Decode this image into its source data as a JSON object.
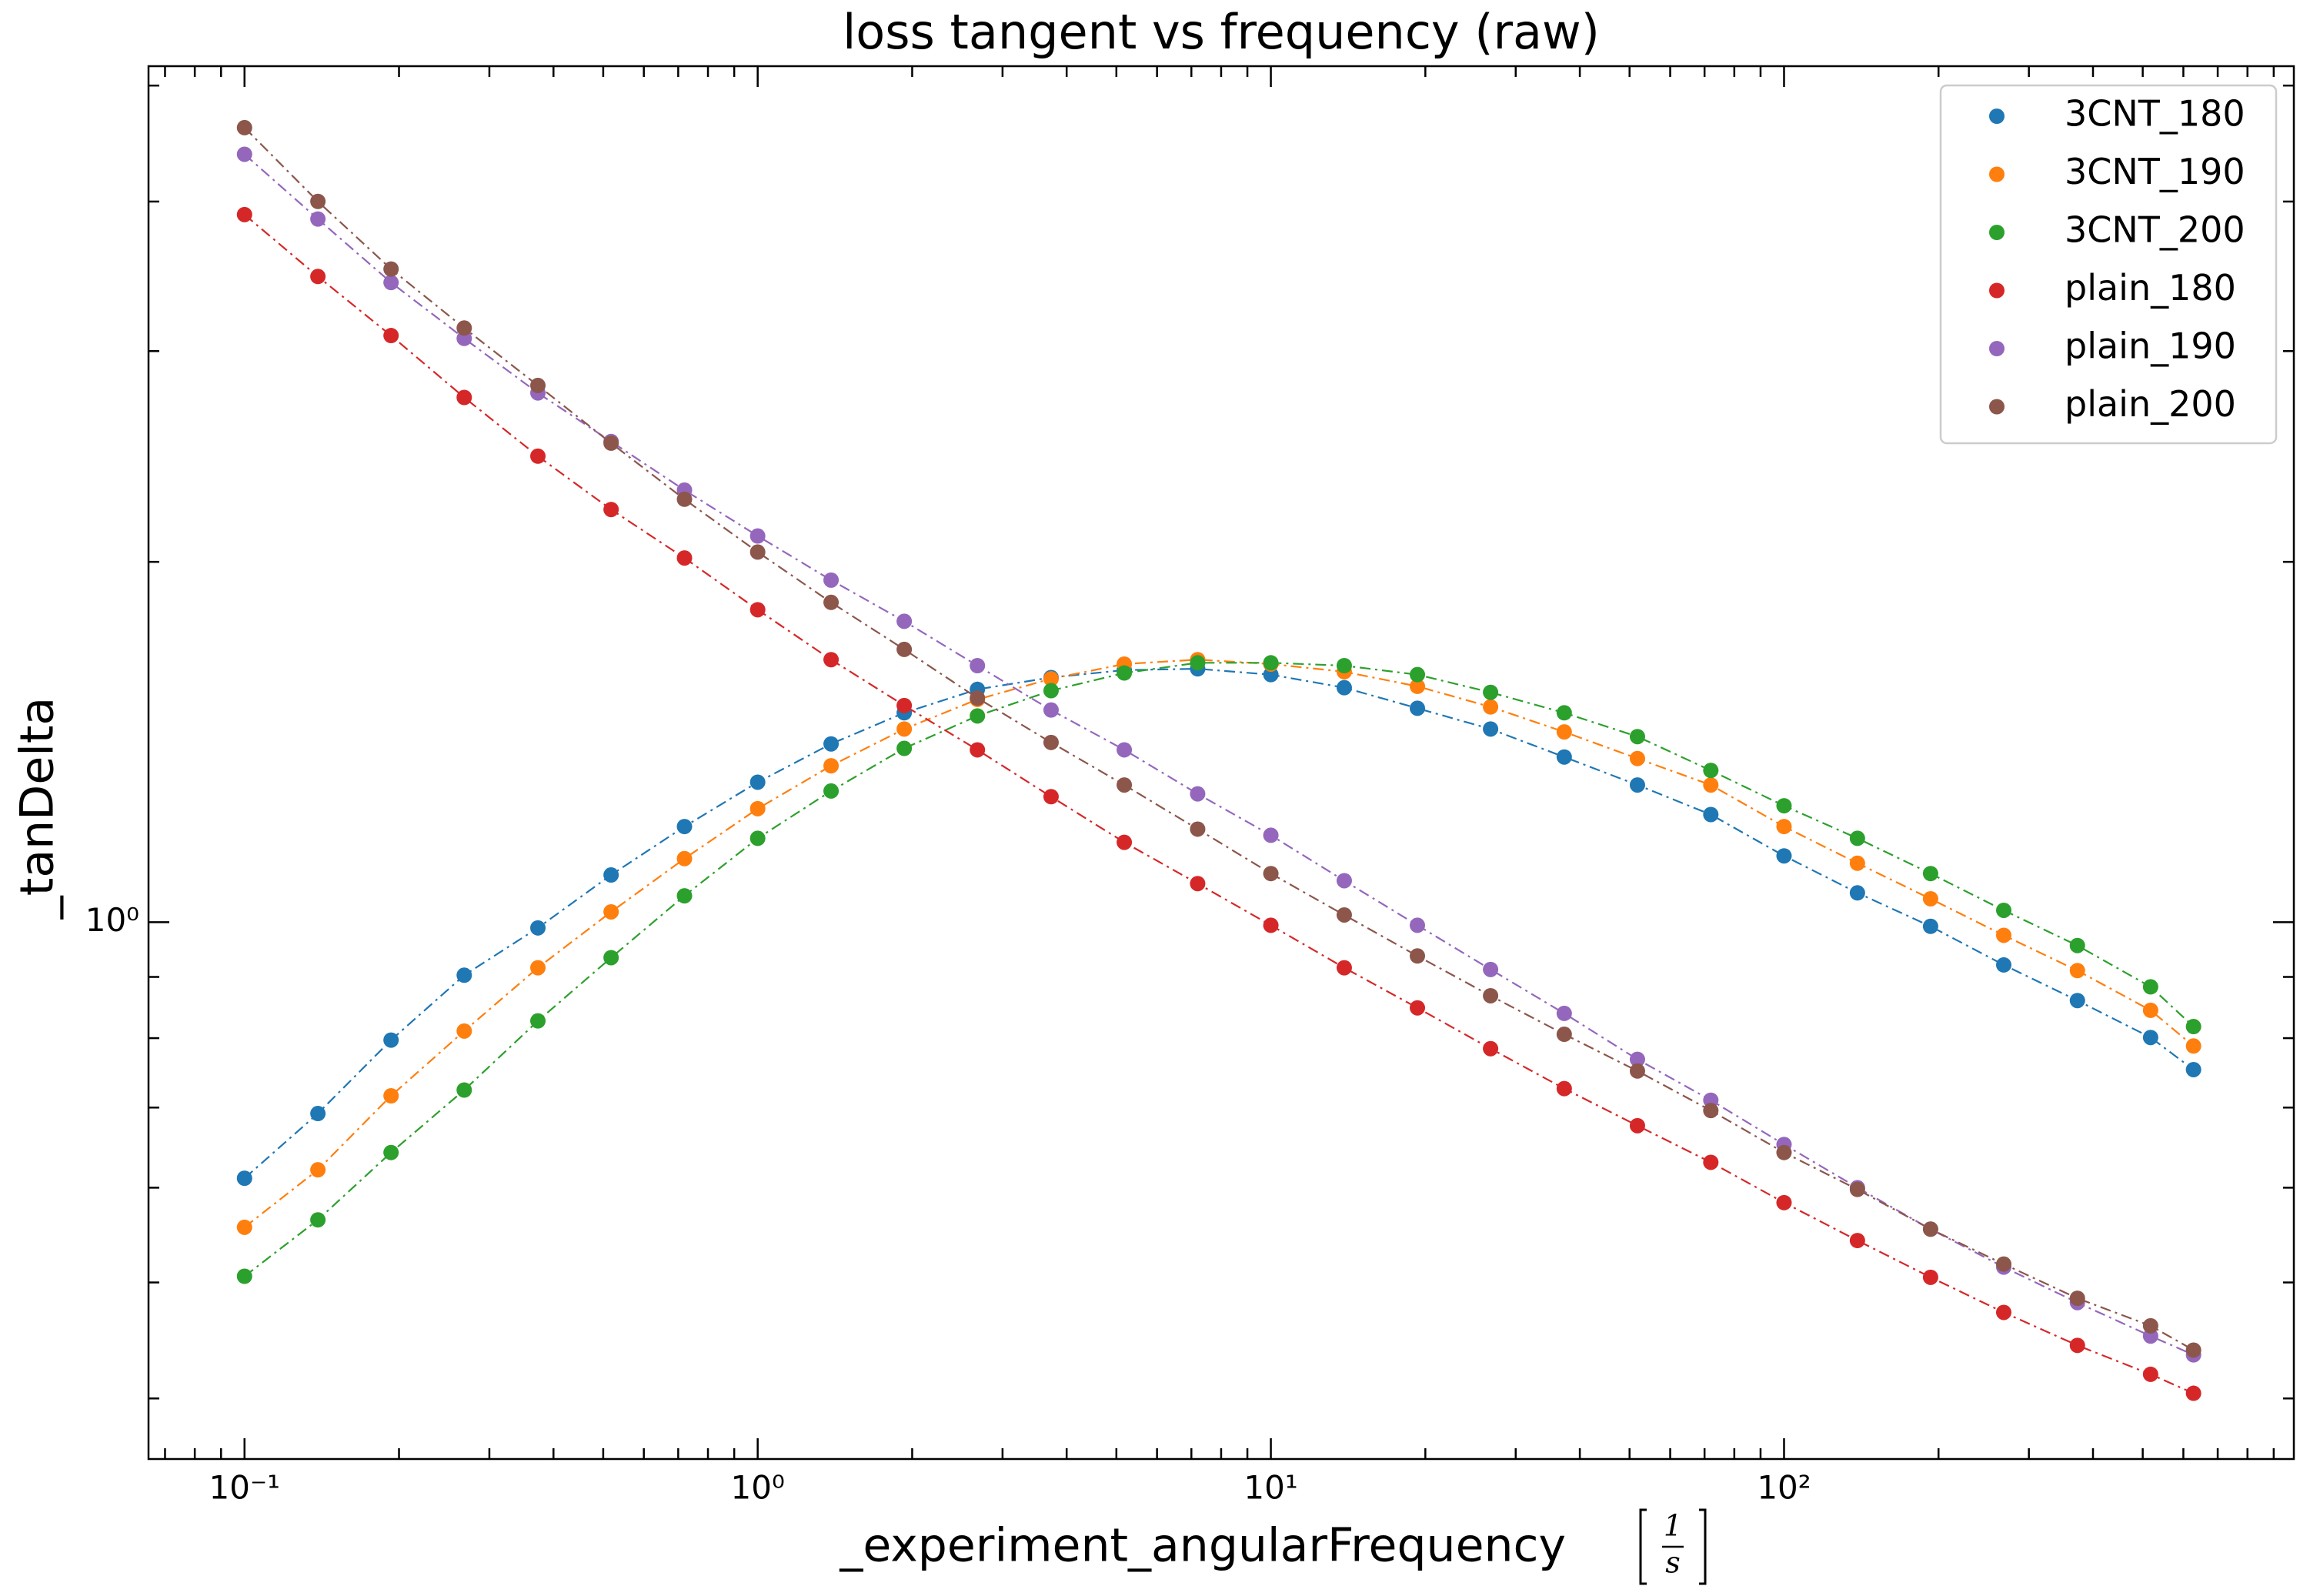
{
  "chart_data": {
    "type": "scatter",
    "title": "loss tangent vs frequency (raw)",
    "x_label": "_experiment_angularFrequency",
    "x_unit": {
      "numerator": "1",
      "denominator": "s"
    },
    "y_label": "_tanDelta",
    "x": [
      0.1,
      0.139,
      0.193,
      0.268,
      0.373,
      0.518,
      0.72,
      1,
      1.39,
      1.93,
      2.68,
      3.73,
      5.18,
      7.2,
      10,
      13.9,
      19.3,
      26.8,
      37.3,
      51.8,
      72,
      100,
      139,
      193,
      268,
      373,
      518,
      628
    ],
    "series": [
      {
        "name": "3CNT_180",
        "color": "#1f77b4",
        "values": [
          0.611,
          0.692,
          0.797,
          0.903,
          0.989,
          1.095,
          1.202,
          1.309,
          1.409,
          1.496,
          1.565,
          1.601,
          1.624,
          1.628,
          1.61,
          1.57,
          1.509,
          1.45,
          1.374,
          1.302,
          1.23,
          1.136,
          1.058,
          0.992,
          0.921,
          0.86,
          0.801,
          0.753
        ]
      },
      {
        "name": "3CNT_190",
        "color": "#ff7f0e",
        "values": [
          0.556,
          0.621,
          0.716,
          0.811,
          0.916,
          1.02,
          1.13,
          1.244,
          1.351,
          1.45,
          1.535,
          1.597,
          1.643,
          1.657,
          1.643,
          1.619,
          1.574,
          1.513,
          1.442,
          1.37,
          1.302,
          1.202,
          1.12,
          1.046,
          0.975,
          0.911,
          0.844,
          0.788
        ]
      },
      {
        "name": "3CNT_200",
        "color": "#2ca02c",
        "values": [
          0.506,
          0.564,
          0.642,
          0.724,
          0.827,
          0.934,
          1.052,
          1.175,
          1.287,
          1.397,
          1.487,
          1.561,
          1.615,
          1.647,
          1.647,
          1.638,
          1.61,
          1.556,
          1.496,
          1.429,
          1.339,
          1.251,
          1.175,
          1.098,
          1.023,
          0.956,
          0.883,
          0.818
        ]
      },
      {
        "name": "plain_180",
        "color": "#d62728",
        "values": [
          3.901,
          3.463,
          3.091,
          2.744,
          2.451,
          2.212,
          2.015,
          1.824,
          1.657,
          1.517,
          1.393,
          1.273,
          1.166,
          1.077,
          0.994,
          0.916,
          0.848,
          0.784,
          0.726,
          0.676,
          0.63,
          0.583,
          0.542,
          0.505,
          0.472,
          0.443,
          0.419,
          0.404
        ]
      },
      {
        "name": "plain_190",
        "color": "#9467bd",
        "values": [
          4.381,
          3.868,
          3.423,
          3.074,
          2.768,
          2.521,
          2.296,
          2.102,
          1.931,
          1.784,
          1.638,
          1.504,
          1.393,
          1.28,
          1.182,
          1.083,
          0.994,
          0.913,
          0.839,
          0.768,
          0.71,
          0.652,
          0.6,
          0.554,
          0.515,
          0.481,
          0.451,
          0.435
        ]
      },
      {
        "name": "plain_200",
        "color": "#8c564b",
        "values": [
          4.611,
          4.001,
          3.513,
          3.136,
          2.808,
          2.513,
          2.256,
          2.038,
          1.85,
          1.69,
          1.539,
          1.413,
          1.302,
          1.196,
          1.098,
          1.014,
          0.937,
          0.868,
          0.806,
          0.751,
          0.696,
          0.642,
          0.598,
          0.554,
          0.518,
          0.485,
          0.46,
          0.439
        ]
      }
    ],
    "xscale": "log",
    "yscale": "log",
    "xlim": [
      0.065,
      985
    ],
    "ylim": [
      0.356,
      5.19
    ],
    "xticks": [
      {
        "value": 0.1,
        "label": "10⁻¹"
      },
      {
        "value": 1,
        "label": "10⁰"
      },
      {
        "value": 10,
        "label": "10¹"
      },
      {
        "value": 100,
        "label": "10²"
      }
    ],
    "xminor": [
      0.07,
      0.08,
      0.09,
      0.2,
      0.3,
      0.4,
      0.5,
      0.6,
      0.7,
      0.8,
      0.9,
      2,
      3,
      4,
      5,
      6,
      7,
      8,
      9,
      20,
      30,
      40,
      50,
      60,
      70,
      80,
      90,
      200,
      300,
      400,
      500,
      600,
      700,
      800,
      900
    ],
    "yticks": [
      {
        "value": 1,
        "label": "10⁰"
      }
    ],
    "yminor": [
      0.4,
      0.5,
      0.6,
      0.7,
      0.8,
      0.9,
      2,
      3,
      4,
      5
    ],
    "line_style": "dashdot",
    "legend": "upper right"
  }
}
